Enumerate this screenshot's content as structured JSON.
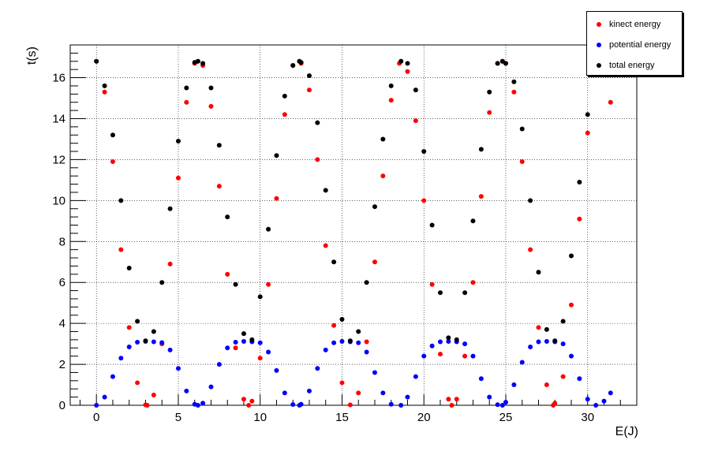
{
  "chart_data": {
    "type": "scatter",
    "title": "",
    "xlabel": "E(J)",
    "ylabel": "t(s)",
    "xlim": [
      -1.6,
      33.0
    ],
    "ylim": [
      0,
      17.6
    ],
    "xticks": [
      0,
      5,
      10,
      15,
      20,
      25,
      30
    ],
    "yticks": [
      0,
      2,
      4,
      6,
      8,
      10,
      12,
      14,
      16
    ],
    "grid": true,
    "legend_position": "top-right",
    "series": [
      {
        "name": "kinect energy",
        "color": "#ff0000",
        "x": [
          0,
          0.5,
          1,
          1.5,
          2,
          2.5,
          3,
          3.1,
          3.5,
          4,
          4.5,
          5,
          5.5,
          6,
          6.2,
          6.5,
          7,
          7.5,
          8,
          8.5,
          9,
          9.3,
          9.5,
          10,
          10.5,
          11,
          11.5,
          12,
          12.4,
          12.5,
          13,
          13.5,
          14,
          14.5,
          15,
          15.5,
          16,
          16.5,
          17,
          17.5,
          18,
          18.5,
          18.6,
          19,
          19.5,
          20,
          20.5,
          21,
          21.5,
          21.7,
          22,
          22.5,
          23,
          23.5,
          24,
          24.5,
          24.8,
          25,
          25.5,
          26,
          26.5,
          27,
          27.5,
          27.9,
          28,
          28.5,
          29,
          29.5,
          30,
          30.5,
          31,
          31.4
        ],
        "y": [
          16.8,
          15.3,
          11.9,
          7.6,
          3.8,
          1.1,
          0.02,
          0.0,
          0.5,
          3.0,
          6.9,
          11.1,
          14.8,
          16.7,
          16.8,
          16.6,
          14.6,
          10.7,
          6.4,
          2.8,
          0.3,
          0.0,
          0.2,
          2.3,
          5.9,
          10.1,
          14.2,
          16.6,
          16.8,
          16.7,
          15.4,
          12.0,
          7.8,
          3.9,
          1.1,
          0.02,
          0.6,
          3.1,
          7.0,
          11.2,
          14.9,
          16.7,
          16.8,
          16.3,
          13.9,
          10.0,
          5.9,
          2.5,
          0.3,
          0.0,
          0.3,
          2.4,
          6.0,
          10.2,
          14.3,
          16.7,
          16.8,
          16.7,
          15.3,
          11.9,
          7.6,
          3.8,
          1.0,
          0.0,
          0.1,
          1.4,
          4.9,
          9.1,
          13.3,
          16.3,
          16.6,
          14.8
        ]
      },
      {
        "name": "potential energy",
        "color": "#0000ff",
        "x": [
          0,
          0.5,
          1,
          1.5,
          2,
          2.5,
          3,
          3.5,
          4,
          4.5,
          5,
          5.5,
          6,
          6.2,
          6.5,
          7,
          7.5,
          8,
          8.5,
          9,
          9.5,
          10,
          10.5,
          11,
          11.5,
          12,
          12.4,
          12.5,
          13,
          13.5,
          14,
          14.5,
          15,
          15.5,
          16,
          16.5,
          17,
          17.5,
          18,
          18.6,
          19,
          19.5,
          20,
          20.5,
          21,
          21.5,
          22,
          22.5,
          23,
          23.5,
          24,
          24.5,
          24.8,
          25,
          25.5,
          26,
          26.5,
          27,
          27.5,
          28,
          28.5,
          29,
          29.5,
          30,
          30.5,
          31,
          31.4
        ],
        "y": [
          0.0,
          0.4,
          1.4,
          2.3,
          2.85,
          3.08,
          3.12,
          3.1,
          3.06,
          2.7,
          1.8,
          0.7,
          0.05,
          0.0,
          0.1,
          0.9,
          2.0,
          2.8,
          3.08,
          3.12,
          3.1,
          3.05,
          2.6,
          1.7,
          0.6,
          0.04,
          0.0,
          0.05,
          0.7,
          1.8,
          2.7,
          3.05,
          3.12,
          3.1,
          3.05,
          2.6,
          1.6,
          0.6,
          0.05,
          0.0,
          0.4,
          1.4,
          2.4,
          2.9,
          3.1,
          3.12,
          3.1,
          3.0,
          2.4,
          1.3,
          0.4,
          0.03,
          0.0,
          0.15,
          1.0,
          2.1,
          2.85,
          3.1,
          3.12,
          3.1,
          3.0,
          2.4,
          1.3,
          0.3,
          0.0,
          0.2,
          0.6
        ]
      },
      {
        "name": "total energy",
        "color": "#000000",
        "x": [
          0,
          0.5,
          1,
          1.5,
          2,
          2.5,
          3,
          3.5,
          4,
          4.5,
          5,
          5.5,
          6,
          6.2,
          6.5,
          7,
          7.5,
          8,
          8.5,
          9,
          9.5,
          10,
          10.5,
          11,
          11.5,
          12,
          12.4,
          12.5,
          13,
          13.5,
          14,
          14.5,
          15,
          15.5,
          16,
          16.5,
          17,
          17.5,
          18,
          18.6,
          19,
          19.5,
          20,
          20.5,
          21,
          21.5,
          22,
          22.5,
          23,
          23.5,
          24,
          24.5,
          24.8,
          25,
          25.5,
          26,
          26.5,
          27,
          27.5,
          28,
          28.5,
          29,
          29.5,
          30,
          30.5,
          31,
          31.4
        ],
        "y": [
          16.8,
          15.6,
          13.2,
          10.0,
          6.7,
          4.1,
          3.15,
          3.6,
          6.0,
          9.6,
          12.9,
          15.5,
          16.75,
          16.8,
          16.7,
          15.5,
          12.7,
          9.2,
          5.9,
          3.5,
          3.2,
          5.3,
          8.6,
          12.2,
          15.1,
          16.6,
          16.8,
          16.75,
          16.1,
          13.8,
          10.5,
          7.0,
          4.2,
          3.15,
          3.6,
          6.0,
          9.7,
          13.0,
          15.6,
          16.8,
          16.7,
          15.4,
          12.4,
          8.8,
          5.5,
          3.3,
          3.2,
          5.5,
          9.0,
          12.5,
          15.3,
          16.7,
          16.8,
          16.7,
          15.8,
          13.5,
          10.0,
          6.5,
          3.7,
          3.15,
          4.1,
          7.3,
          10.9,
          14.2,
          16.4,
          16.8,
          16.2
        ]
      }
    ]
  }
}
